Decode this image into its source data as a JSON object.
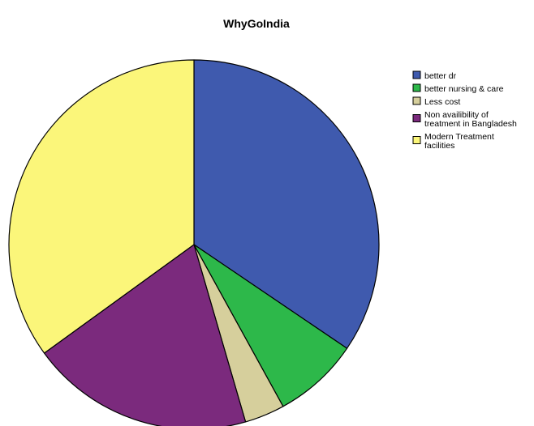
{
  "chart_data": {
    "type": "pie",
    "title": "WhyGoIndia",
    "start_angle_deg": 0,
    "direction": "clockwise",
    "legend_position": "top-right",
    "slices": [
      {
        "label": "better dr",
        "value": 34.5,
        "color": "#3f5aae",
        "legend_lines": [
          "better dr"
        ]
      },
      {
        "label": "better nursing & care",
        "value": 7.5,
        "color": "#2db84a",
        "legend_lines": [
          "better nursing & care"
        ]
      },
      {
        "label": "Less cost",
        "value": 3.5,
        "color": "#d6cf9c",
        "legend_lines": [
          "Less cost"
        ]
      },
      {
        "label": "Non availibility of treatment in Bangladesh",
        "value": 19.5,
        "color": "#7b2a7d",
        "legend_lines": [
          "Non availibility of",
          "treatment in Bangladesh"
        ]
      },
      {
        "label": "Modern Treatment facilities",
        "value": 35.0,
        "color": "#fbf67a",
        "legend_lines": [
          "Modern Treatment",
          "facilities"
        ]
      }
    ]
  }
}
